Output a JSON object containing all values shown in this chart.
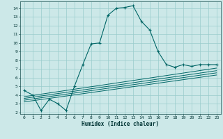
{
  "title": "",
  "xlabel": "Humidex (Indice chaleur)",
  "ylabel": "",
  "bg_color": "#cce8e8",
  "grid_color": "#99cccc",
  "line_color": "#006666",
  "xlim": [
    -0.5,
    23.5
  ],
  "ylim": [
    1.8,
    14.8
  ],
  "xticks": [
    0,
    1,
    2,
    3,
    4,
    5,
    6,
    7,
    8,
    9,
    10,
    11,
    12,
    13,
    14,
    15,
    16,
    17,
    18,
    19,
    20,
    21,
    22,
    23
  ],
  "yticks": [
    2,
    3,
    4,
    5,
    6,
    7,
    8,
    9,
    10,
    11,
    12,
    13,
    14
  ],
  "main_x": [
    0,
    1,
    2,
    3,
    4,
    5,
    6,
    7,
    8,
    9,
    10,
    11,
    12,
    13,
    14,
    15,
    16,
    17,
    18,
    19,
    20,
    21,
    22,
    23
  ],
  "main_y": [
    4.5,
    4.0,
    2.2,
    3.5,
    3.0,
    2.2,
    5.0,
    7.5,
    9.9,
    10.0,
    13.2,
    14.0,
    14.1,
    14.3,
    12.5,
    11.5,
    9.0,
    7.5,
    7.2,
    7.5,
    7.3,
    7.5,
    7.5,
    7.5
  ],
  "line1_x": [
    0,
    23
  ],
  "line1_y": [
    3.2,
    6.3
  ],
  "line2_x": [
    0,
    23
  ],
  "line2_y": [
    3.4,
    6.55
  ],
  "line3_x": [
    0,
    23
  ],
  "line3_y": [
    3.6,
    6.8
  ],
  "line4_x": [
    0,
    23
  ],
  "line4_y": [
    3.8,
    7.1
  ]
}
